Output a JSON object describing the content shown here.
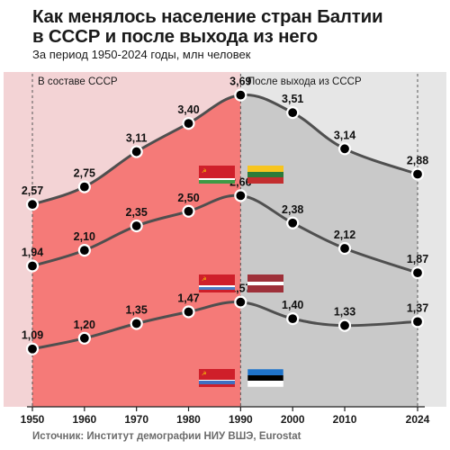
{
  "title_line1": "Как менялось население стран Балтии",
  "title_line2": "в СССР и после выхода из него",
  "subtitle": "За период 1950-2024 годы, млн человек",
  "source": "Источник: Институт демографии НИУ ВШЭ, Eurostat",
  "colors": {
    "ussr_bg": "#f3d3d5",
    "post_bg": "#e6e6e6",
    "ussr_fill": "#f57a78",
    "post_fill": "#c9c9c9",
    "line": "#4f4f4f"
  },
  "chart_data": {
    "type": "line",
    "x": [
      1950,
      1960,
      1970,
      1980,
      1990,
      2000,
      2010,
      2024
    ],
    "x_tick_labels": [
      "1950",
      "1960",
      "1970",
      "1980",
      "1990",
      "2000",
      "2010",
      "2024"
    ],
    "periods": [
      {
        "label": "В составе СССР",
        "from": 1950,
        "to": 1990
      },
      {
        "label": "После выхода из СССР",
        "from": 1990,
        "to": 2024
      }
    ],
    "series": [
      {
        "flags": [
          "lithuania-ssr-flag",
          "lithuania-flag"
        ],
        "values": [
          2.57,
          2.75,
          3.11,
          3.4,
          3.69,
          3.51,
          3.14,
          2.88
        ],
        "labels": [
          "2,57",
          "2,75",
          "3,11",
          "3,40",
          "3,69",
          "3,51",
          "3,14",
          "2,88"
        ]
      },
      {
        "flags": [
          "latvia-ssr-flag",
          "latvia-flag"
        ],
        "values": [
          1.94,
          2.1,
          2.35,
          2.5,
          2.66,
          2.38,
          2.12,
          1.87
        ],
        "labels": [
          "1,94",
          "2,10",
          "2,35",
          "2,50",
          "2,66",
          "2,38",
          "2,12",
          "1,87"
        ]
      },
      {
        "flags": [
          "estonia-ssr-flag",
          "estonia-flag"
        ],
        "values": [
          1.09,
          1.2,
          1.35,
          1.47,
          1.57,
          1.4,
          1.33,
          1.37
        ],
        "labels": [
          "1,09",
          "1,20",
          "1,35",
          "1,47",
          "1,57",
          "1,40",
          "1,33",
          "1,37"
        ]
      }
    ]
  }
}
